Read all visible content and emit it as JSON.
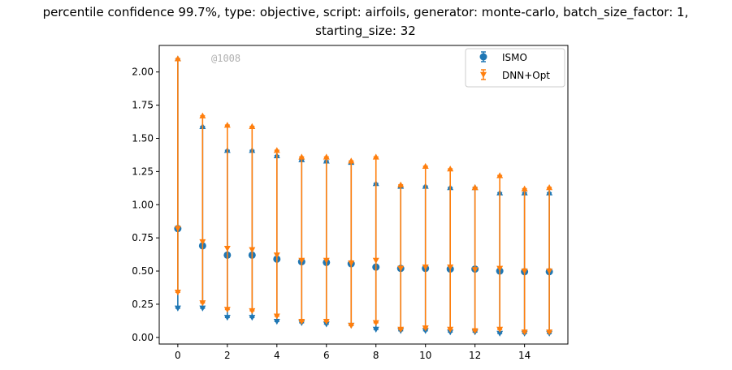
{
  "title_lines": [
    "percentile confidence 99.7%, type: objective, script: airfoils, generator: monte-carlo, batch_size_factor: 1,",
    "starting_size: 32"
  ],
  "watermark": "@1008",
  "colors": {
    "ISMO": "#1f77b4",
    "DNN+Opt": "#ff7f0e"
  },
  "chart_data": {
    "type": "scatter",
    "title": "percentile confidence 99.7%, type: objective, script: airfoils, generator: monte-carlo, batch_size_factor: 1, starting_size: 32",
    "xlabel": "",
    "ylabel": "",
    "xlim": [
      -0.75,
      15.75
    ],
    "ylim": [
      -0.05,
      2.2
    ],
    "xticks": [
      0,
      2,
      4,
      6,
      8,
      10,
      12,
      14
    ],
    "xtick_labels": [
      "0",
      "2",
      "4",
      "6",
      "8",
      "10",
      "12",
      "14"
    ],
    "yticks": [
      0.0,
      0.25,
      0.5,
      0.75,
      1.0,
      1.25,
      1.5,
      1.75,
      2.0
    ],
    "ytick_labels": [
      "0.00",
      "0.25",
      "0.50",
      "0.75",
      "1.00",
      "1.25",
      "1.50",
      "1.75",
      "2.00"
    ],
    "legend_position": "top-right",
    "legend": [
      "ISMO",
      "DNN+Opt"
    ],
    "x": [
      0,
      1,
      2,
      3,
      4,
      5,
      6,
      7,
      8,
      9,
      10,
      11,
      12,
      13,
      14,
      15
    ],
    "series": [
      {
        "name": "ISMO",
        "marker": "circle",
        "values": [
          0.82,
          0.69,
          0.62,
          0.62,
          0.59,
          0.57,
          0.565,
          0.555,
          0.53,
          0.52,
          0.52,
          0.515,
          0.515,
          0.5,
          0.495,
          0.495
        ],
        "lower": [
          0.22,
          0.22,
          0.15,
          0.15,
          0.12,
          0.11,
          0.1,
          0.09,
          0.06,
          0.05,
          0.05,
          0.04,
          0.04,
          0.03,
          0.03,
          0.03
        ],
        "upper": [
          2.1,
          1.59,
          1.41,
          1.41,
          1.37,
          1.34,
          1.33,
          1.32,
          1.16,
          1.14,
          1.14,
          1.13,
          1.13,
          1.09,
          1.09,
          1.09
        ]
      },
      {
        "name": "DNN+Opt",
        "marker": "triangle",
        "values": [
          0.82,
          0.72,
          0.67,
          0.66,
          0.62,
          0.58,
          0.58,
          0.56,
          0.58,
          0.52,
          0.53,
          0.53,
          0.51,
          0.52,
          0.5,
          0.5
        ],
        "lower": [
          0.34,
          0.26,
          0.21,
          0.2,
          0.16,
          0.12,
          0.12,
          0.09,
          0.11,
          0.06,
          0.07,
          0.06,
          0.05,
          0.06,
          0.04,
          0.04
        ],
        "upper": [
          2.1,
          1.67,
          1.6,
          1.59,
          1.41,
          1.36,
          1.36,
          1.33,
          1.36,
          1.15,
          1.29,
          1.27,
          1.13,
          1.22,
          1.12,
          1.13
        ]
      }
    ]
  }
}
